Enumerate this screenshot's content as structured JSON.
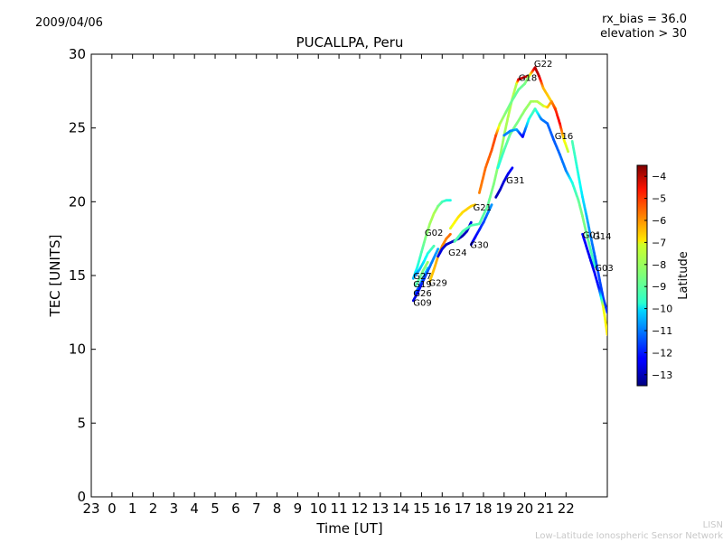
{
  "header": {
    "date": "2009/04/06",
    "rx_bias": "rx_bias = 36.0",
    "elevation": "elevation > 30"
  },
  "footer": {
    "line1": "LISN",
    "line2": "Low-Latitude Ionospheric Sensor Network"
  },
  "chart_data": {
    "type": "scatter",
    "title": "PUCALLPA, Peru",
    "xlabel": "Time [UT]",
    "ylabel": "TEC [UNITS]",
    "xlim": [
      -1,
      24
    ],
    "ylim": [
      0,
      30
    ],
    "x_ticks": [
      -1,
      0,
      1,
      2,
      3,
      4,
      5,
      6,
      7,
      8,
      9,
      10,
      11,
      12,
      13,
      14,
      15,
      16,
      17,
      18,
      19,
      20,
      21,
      22
    ],
    "x_tick_labels": [
      "23",
      "0",
      "1",
      "2",
      "3",
      "4",
      "5",
      "6",
      "7",
      "8",
      "9",
      "10",
      "11",
      "12",
      "13",
      "14",
      "15",
      "16",
      "17",
      "18",
      "19",
      "20",
      "21",
      "22"
    ],
    "y_ticks": [
      0,
      5,
      10,
      15,
      20,
      25,
      30
    ],
    "grid": false,
    "colorbar": {
      "label": "Latitude",
      "min": -13.5,
      "max": -3.5,
      "ticks": [
        -4,
        -5,
        -6,
        -7,
        -8,
        -9,
        -10,
        -11,
        -12,
        -13
      ],
      "tick_labels": [
        "−4",
        "−5",
        "−6",
        "−7",
        "−8",
        "−9",
        "−10",
        "−11",
        "−12",
        "−13"
      ]
    },
    "series": [
      {
        "name": "G02",
        "label_at": [
          15.15,
          17.95
        ],
        "points": [
          [
            14.6,
            14.8,
            -10.5
          ],
          [
            14.8,
            15.6,
            -9.5
          ],
          [
            15.0,
            16.6,
            -9.0
          ],
          [
            15.2,
            17.6,
            -8.5
          ],
          [
            15.4,
            18.5,
            -8.2
          ],
          [
            15.6,
            19.2,
            -8.0
          ],
          [
            15.8,
            19.7,
            -8.5
          ],
          [
            16.0,
            20.0,
            -9.0
          ],
          [
            16.2,
            20.1,
            -9.3
          ],
          [
            16.4,
            20.1,
            -9.5
          ]
        ]
      },
      {
        "name": "G27",
        "label_at": [
          14.6,
          15.0
        ],
        "points": [
          [
            14.7,
            15.0,
            -11.0
          ],
          [
            14.9,
            15.4,
            -10.5
          ],
          [
            15.1,
            15.9,
            -10.0
          ],
          [
            15.3,
            16.5,
            -9.5
          ],
          [
            15.6,
            17.0,
            -9.0
          ]
        ]
      },
      {
        "name": "G19",
        "label_at": [
          14.6,
          14.45
        ],
        "points": [
          [
            14.7,
            14.3,
            -9.0
          ],
          [
            14.9,
            14.8,
            -8.8
          ],
          [
            15.1,
            15.4,
            -8.5
          ],
          [
            15.3,
            15.9,
            -8.3
          ]
        ]
      },
      {
        "name": "G26",
        "label_at": [
          14.6,
          13.85
        ],
        "points": [
          [
            14.7,
            13.8,
            -11.5
          ],
          [
            14.9,
            14.3,
            -11.0
          ],
          [
            15.1,
            14.9,
            -10.5
          ],
          [
            15.3,
            15.5,
            -10.0
          ]
        ]
      },
      {
        "name": "G09",
        "label_at": [
          14.6,
          13.2
        ],
        "points": [
          [
            14.6,
            13.3,
            -12.6
          ],
          [
            14.8,
            13.8,
            -12.3
          ],
          [
            15.0,
            14.4,
            -12.0
          ],
          [
            15.2,
            15.0,
            -11.6
          ],
          [
            15.4,
            15.6,
            -11.2
          ],
          [
            15.6,
            16.2,
            -10.9
          ],
          [
            15.8,
            16.8,
            -10.6
          ]
        ]
      },
      {
        "name": "G29",
        "label_at": [
          15.35,
          14.55
        ],
        "points": [
          [
            15.4,
            14.6,
            -6.8
          ],
          [
            15.6,
            15.4,
            -6.6
          ],
          [
            15.8,
            16.3,
            -6.4
          ],
          [
            16.0,
            17.0,
            -6.2
          ],
          [
            16.2,
            17.5,
            -6.0
          ],
          [
            16.4,
            17.8,
            -5.8
          ]
        ]
      },
      {
        "name": "G24",
        "label_at": [
          16.3,
          16.6
        ],
        "points": [
          [
            15.8,
            16.3,
            -12.5
          ],
          [
            16.0,
            16.8,
            -12.6
          ],
          [
            16.2,
            17.1,
            -12.8
          ],
          [
            16.5,
            17.3,
            -12.9
          ],
          [
            16.8,
            17.5,
            -13.0
          ],
          [
            17.0,
            17.7,
            -13.0
          ],
          [
            17.2,
            18.0,
            -12.8
          ],
          [
            17.4,
            18.6,
            -12.6
          ]
        ]
      },
      {
        "name": "G21",
        "label_at": [
          17.5,
          19.65
        ],
        "points": [
          [
            16.4,
            18.2,
            -7.5
          ],
          [
            16.6,
            18.6,
            -7.2
          ],
          [
            16.8,
            19.0,
            -7.0
          ],
          [
            17.0,
            19.3,
            -6.9
          ],
          [
            17.2,
            19.5,
            -6.8
          ],
          [
            17.4,
            19.7,
            -6.8
          ],
          [
            17.6,
            19.8,
            -6.7
          ]
        ]
      },
      {
        "name": "G30",
        "label_at": [
          17.35,
          17.1
        ],
        "points": [
          [
            17.4,
            17.1,
            -12.6
          ],
          [
            17.6,
            17.6,
            -12.3
          ],
          [
            17.8,
            18.1,
            -12.0
          ],
          [
            18.0,
            18.6,
            -11.6
          ],
          [
            18.2,
            19.2,
            -11.2
          ],
          [
            18.4,
            19.8,
            -10.8
          ]
        ]
      },
      {
        "name": "G31",
        "label_at": [
          19.1,
          21.5
        ],
        "points": [
          [
            18.6,
            20.3,
            -13.0
          ],
          [
            18.8,
            20.8,
            -12.8
          ],
          [
            19.0,
            21.4,
            -12.6
          ],
          [
            19.2,
            21.9,
            -12.4
          ],
          [
            19.4,
            22.3,
            -12.2
          ]
        ]
      },
      {
        "name": "G18",
        "label_at": [
          19.7,
          28.45
        ],
        "points": [
          [
            16.6,
            17.3,
            -9.0
          ],
          [
            17.0,
            18.0,
            -9.0
          ],
          [
            17.4,
            18.4,
            -9.0
          ],
          [
            17.8,
            18.5,
            -9.0
          ],
          [
            18.2,
            19.7,
            -8.8
          ],
          [
            18.5,
            21.2,
            -8.5
          ],
          [
            18.8,
            23.0,
            -8.3
          ],
          [
            19.0,
            24.5,
            -8.2
          ],
          [
            19.2,
            25.8,
            -8.0
          ],
          [
            19.4,
            27.0,
            -8.0
          ],
          [
            19.6,
            28.0,
            -8.0
          ],
          [
            19.7,
            28.3,
            -4.5
          ],
          [
            19.9,
            28.4,
            -4.3
          ],
          [
            20.1,
            28.5,
            -4.1
          ]
        ]
      },
      {
        "name": "G22",
        "label_at": [
          20.45,
          29.4
        ],
        "points": [
          [
            17.8,
            20.6,
            -6.0
          ],
          [
            18.1,
            22.3,
            -5.8
          ],
          [
            18.4,
            23.5,
            -5.6
          ],
          [
            18.6,
            24.5,
            -5.4
          ],
          [
            18.8,
            25.3,
            -8.0
          ],
          [
            19.1,
            26.1,
            -8.5
          ],
          [
            19.4,
            26.9,
            -8.7
          ],
          [
            19.7,
            27.6,
            -8.8
          ],
          [
            20.0,
            28.0,
            -8.6
          ],
          [
            20.2,
            28.5,
            -8.2
          ],
          [
            20.5,
            29.1,
            -4.0
          ],
          [
            20.7,
            28.5,
            -4.2
          ],
          [
            20.9,
            27.7,
            -6.5
          ],
          [
            21.2,
            27.0,
            -6.8
          ],
          [
            21.5,
            26.3,
            -6.6
          ]
        ]
      },
      {
        "name": "G16",
        "label_at": [
          21.45,
          24.5
        ],
        "points": [
          [
            18.7,
            22.3,
            -9.5
          ],
          [
            19.0,
            23.5,
            -9.0
          ],
          [
            19.3,
            24.6,
            -8.7
          ],
          [
            19.7,
            25.5,
            -8.5
          ],
          [
            20.0,
            26.2,
            -8.3
          ],
          [
            20.3,
            26.8,
            -8.2
          ],
          [
            20.6,
            26.8,
            -8.0
          ],
          [
            20.9,
            26.5,
            -7.8
          ],
          [
            21.1,
            26.4,
            -6.8
          ],
          [
            21.3,
            26.8,
            -6.2
          ],
          [
            21.5,
            26.2,
            -5.2
          ],
          [
            21.7,
            25.3,
            -4.7
          ],
          [
            21.9,
            24.2,
            -7.2
          ],
          [
            22.1,
            23.4,
            -7.8
          ]
        ]
      },
      {
        "name": "G14",
        "label_at": [
          23.3,
          17.7
        ],
        "points": [
          [
            19.0,
            24.5,
            -11.0
          ],
          [
            19.3,
            24.8,
            -11.0
          ],
          [
            19.6,
            24.9,
            -10.5
          ],
          [
            19.9,
            24.4,
            -12.4
          ],
          [
            20.2,
            25.6,
            -9.5
          ],
          [
            20.5,
            26.3,
            -9.0
          ],
          [
            20.8,
            25.6,
            -11.0
          ],
          [
            21.1,
            25.3,
            -11.2
          ],
          [
            21.4,
            24.2,
            -11.4
          ],
          [
            21.7,
            23.2,
            -11.2
          ],
          [
            22.0,
            22.1,
            -11.0
          ],
          [
            22.3,
            21.3,
            -9.5
          ],
          [
            22.6,
            20.1,
            -8.8
          ],
          [
            22.8,
            19.0,
            -8.5
          ],
          [
            23.0,
            17.8,
            -8.7
          ],
          [
            23.2,
            16.7,
            -9.0
          ],
          [
            23.4,
            15.6,
            -9.3
          ]
        ]
      },
      {
        "name": "G01",
        "label_at": [
          22.8,
          17.8
        ],
        "points": [
          [
            22.3,
            24.1,
            -9.0
          ],
          [
            22.6,
            21.8,
            -9.5
          ],
          [
            22.8,
            20.3,
            -10.0
          ],
          [
            23.0,
            19.0,
            -10.5
          ],
          [
            23.2,
            17.6,
            -11.0
          ],
          [
            23.4,
            16.3,
            -11.3
          ],
          [
            23.6,
            14.9,
            -11.5
          ],
          [
            23.8,
            13.5,
            -11.7
          ],
          [
            24.0,
            12.5,
            -11.8
          ]
        ]
      },
      {
        "name": "G03",
        "label_at": [
          23.4,
          15.55
        ],
        "points": [
          [
            22.8,
            17.8,
            -12.2
          ],
          [
            23.0,
            16.9,
            -12.3
          ],
          [
            23.2,
            16.0,
            -12.4
          ],
          [
            23.4,
            15.1,
            -12.3
          ],
          [
            23.6,
            14.1,
            -12.0
          ],
          [
            23.8,
            12.9,
            -7.5
          ],
          [
            24.0,
            11.0,
            -7.0
          ]
        ]
      }
    ]
  }
}
